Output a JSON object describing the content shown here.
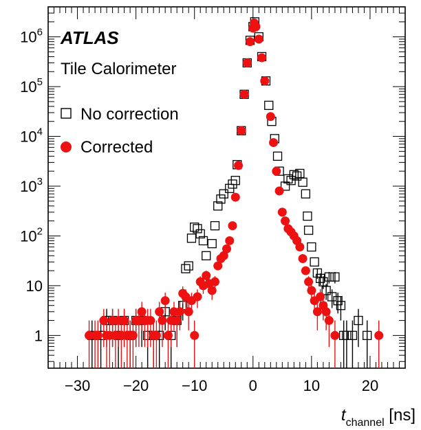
{
  "chart_data": {
    "type": "scatter",
    "experiment_label": "ATLAS",
    "sublabel": "Tile Calorimeter",
    "xlabel_main": "t",
    "xlabel_sub": "channel",
    "xlabel_unit": " [ns]",
    "ylabel": "",
    "xlim": [
      -35,
      26
    ],
    "ylim": [
      0.22,
      4000000
    ],
    "y_scale": "log",
    "grid": false,
    "legend_position": "top-left",
    "x_ticks": [
      -30,
      -20,
      -10,
      0,
      10,
      20
    ],
    "x_tick_labels": [
      "−30",
      "−20",
      "−10",
      "0",
      "10",
      "20"
    ],
    "y_ticks": [
      {
        "value": 1,
        "base": "1",
        "exp": ""
      },
      {
        "value": 10,
        "base": "10",
        "exp": ""
      },
      {
        "value": 100,
        "base": "10",
        "exp": "2"
      },
      {
        "value": 1000,
        "base": "10",
        "exp": "3"
      },
      {
        "value": 10000,
        "base": "10",
        "exp": "4"
      },
      {
        "value": 100000,
        "base": "10",
        "exp": "5"
      },
      {
        "value": 1000000,
        "base": "10",
        "exp": "6"
      }
    ],
    "series": [
      {
        "name": "No correction",
        "marker": "open-square",
        "color": "#000000",
        "points": [
          [
            -27.5,
            1
          ],
          [
            -26,
            1
          ],
          [
            -25,
            2
          ],
          [
            -24,
            2
          ],
          [
            -23,
            1
          ],
          [
            -22,
            2
          ],
          [
            -21,
            1
          ],
          [
            -20,
            2
          ],
          [
            -19,
            2
          ],
          [
            -18,
            1
          ],
          [
            -17,
            1
          ],
          [
            -16,
            1
          ],
          [
            -15,
            3
          ],
          [
            -14,
            1
          ],
          [
            -13,
            2
          ],
          [
            -12,
            4
          ],
          [
            -11.5,
            22
          ],
          [
            -11,
            25
          ],
          [
            -10.5,
            90
          ],
          [
            -10,
            150
          ],
          [
            -9.5,
            140
          ],
          [
            -9,
            110
          ],
          [
            -8.5,
            80
          ],
          [
            -8,
            40
          ],
          [
            -7,
            70
          ],
          [
            -6.5,
            160
          ],
          [
            -6,
            400
          ],
          [
            -5.5,
            550
          ],
          [
            -5,
            700
          ],
          [
            -4,
            900
          ],
          [
            -3.5,
            1100
          ],
          [
            -3,
            1300
          ],
          [
            -2.7,
            2700
          ],
          [
            -2,
            13000
          ],
          [
            -1.5,
            70000
          ],
          [
            -1,
            300000
          ],
          [
            -0.5,
            850000
          ],
          [
            0,
            1600000
          ],
          [
            0.3,
            2000000
          ],
          [
            1,
            1000000
          ],
          [
            1.5,
            400000
          ],
          [
            2.2,
            130000
          ],
          [
            2.7,
            42000
          ],
          [
            3.2,
            20000
          ],
          [
            3.7,
            9000
          ],
          [
            4.2,
            4000
          ],
          [
            4.5,
            2000
          ],
          [
            5.5,
            1000
          ],
          [
            6,
            1400
          ],
          [
            6.5,
            1300
          ],
          [
            7,
            1700
          ],
          [
            7.5,
            1600
          ],
          [
            8,
            1800
          ],
          [
            8.5,
            1200
          ],
          [
            9,
            700
          ],
          [
            9.3,
            250
          ],
          [
            9.5,
            130
          ],
          [
            10,
            60
          ],
          [
            10.5,
            30
          ],
          [
            11,
            18
          ],
          [
            11.5,
            14
          ],
          [
            12,
            12
          ],
          [
            12.5,
            8
          ],
          [
            13,
            15
          ],
          [
            13.5,
            6
          ],
          [
            14,
            15
          ],
          [
            14.5,
            5
          ],
          [
            15,
            4
          ],
          [
            15.5,
            1
          ],
          [
            16,
            1
          ],
          [
            17,
            1
          ],
          [
            18,
            2
          ],
          [
            19.5,
            1
          ]
        ]
      },
      {
        "name": "Corrected",
        "marker": "filled-circle",
        "color": "#ee1111",
        "points": [
          [
            -28,
            1
          ],
          [
            -27,
            1
          ],
          [
            -26.5,
            1
          ],
          [
            -25.5,
            2
          ],
          [
            -25,
            1
          ],
          [
            -24.5,
            1
          ],
          [
            -24,
            2
          ],
          [
            -23.5,
            1
          ],
          [
            -23,
            2
          ],
          [
            -22.5,
            1
          ],
          [
            -22,
            2
          ],
          [
            -21.5,
            1
          ],
          [
            -21,
            1
          ],
          [
            -20.5,
            1
          ],
          [
            -20,
            2
          ],
          [
            -19.5,
            2
          ],
          [
            -19,
            3
          ],
          [
            -18.5,
            2
          ],
          [
            -18,
            2
          ],
          [
            -17.5,
            2
          ],
          [
            -17,
            1
          ],
          [
            -16.5,
            1
          ],
          [
            -16,
            3
          ],
          [
            -15.5,
            2
          ],
          [
            -15,
            5
          ],
          [
            -14.5,
            1
          ],
          [
            -14,
            2
          ],
          [
            -13.5,
            3
          ],
          [
            -13,
            2
          ],
          [
            -12.5,
            3
          ],
          [
            -12,
            7
          ],
          [
            -11.5,
            6
          ],
          [
            -11,
            3
          ],
          [
            -10.5,
            5
          ],
          [
            -10,
            1
          ],
          [
            -9.5,
            6
          ],
          [
            -9,
            12
          ],
          [
            -8.5,
            10
          ],
          [
            -8,
            16
          ],
          [
            -7.5,
            11
          ],
          [
            -7,
            8
          ],
          [
            -6.5,
            12
          ],
          [
            -6,
            25
          ],
          [
            -5.5,
            35
          ],
          [
            -5,
            40
          ],
          [
            -4.5,
            55
          ],
          [
            -4,
            80
          ],
          [
            -3.5,
            160
          ],
          [
            -3,
            600
          ],
          [
            -2.5,
            2600
          ],
          [
            -2,
            13000
          ],
          [
            -1.5,
            70000
          ],
          [
            -1,
            300000
          ],
          [
            -0.5,
            800000
          ],
          [
            0,
            1500000
          ],
          [
            0.2,
            1900000
          ],
          [
            0.5,
            1600000
          ],
          [
            1,
            900000
          ],
          [
            1.5,
            380000
          ],
          [
            2,
            130000
          ],
          [
            3,
            25000
          ],
          [
            3.5,
            7500
          ],
          [
            4,
            2000
          ],
          [
            4.5,
            800
          ],
          [
            5,
            300
          ],
          [
            5.5,
            200
          ],
          [
            6,
            140
          ],
          [
            6.5,
            120
          ],
          [
            7,
            100
          ],
          [
            7.5,
            80
          ],
          [
            8,
            60
          ],
          [
            8.5,
            35
          ],
          [
            9,
            20
          ],
          [
            9.5,
            12
          ],
          [
            10,
            8
          ],
          [
            10.5,
            5
          ],
          [
            11,
            3
          ],
          [
            11.5,
            6
          ],
          [
            12,
            4
          ],
          [
            12.5,
            3
          ],
          [
            13,
            2
          ],
          [
            14,
            1
          ],
          [
            21.5,
            1
          ]
        ]
      }
    ]
  }
}
